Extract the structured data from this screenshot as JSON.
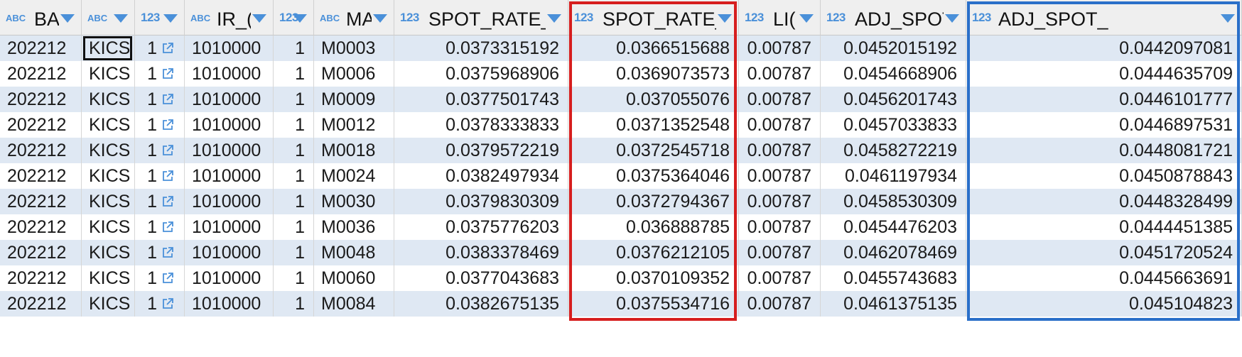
{
  "columns": [
    {
      "type": "ABC",
      "label": "BA"
    },
    {
      "type": "ABC",
      "label": ""
    },
    {
      "type": "123",
      "label": ""
    },
    {
      "type": "ABC",
      "label": "IR_("
    },
    {
      "type": "123",
      "label": ""
    },
    {
      "type": "ABC",
      "label": "MA"
    },
    {
      "type": "123",
      "label": "SPOT_RATE_D"
    },
    {
      "type": "123",
      "label": "SPOT_RATE_C"
    },
    {
      "type": "123",
      "label": "LI("
    },
    {
      "type": "123",
      "label": "ADJ_SPOT."
    },
    {
      "type": "123",
      "label": "ADJ_SPOT_"
    }
  ],
  "rows": [
    [
      "202212",
      "KICS",
      "1",
      "1010000",
      "1",
      "M0003",
      "0.0373315192",
      "0.0366515688",
      "0.00787",
      "0.0452015192",
      "0.0442097081"
    ],
    [
      "202212",
      "KICS",
      "1",
      "1010000",
      "1",
      "M0006",
      "0.0375968906",
      "0.0369073573",
      "0.00787",
      "0.0454668906",
      "0.0444635709"
    ],
    [
      "202212",
      "KICS",
      "1",
      "1010000",
      "1",
      "M0009",
      "0.0377501743",
      "0.037055076",
      "0.00787",
      "0.0456201743",
      "0.0446101777"
    ],
    [
      "202212",
      "KICS",
      "1",
      "1010000",
      "1",
      "M0012",
      "0.0378333833",
      "0.0371352548",
      "0.00787",
      "0.0457033833",
      "0.0446897531"
    ],
    [
      "202212",
      "KICS",
      "1",
      "1010000",
      "1",
      "M0018",
      "0.0379572219",
      "0.0372545718",
      "0.00787",
      "0.0458272219",
      "0.0448081721"
    ],
    [
      "202212",
      "KICS",
      "1",
      "1010000",
      "1",
      "M0024",
      "0.0382497934",
      "0.0375364046",
      "0.00787",
      "0.0461197934",
      "0.0450878843"
    ],
    [
      "202212",
      "KICS",
      "1",
      "1010000",
      "1",
      "M0030",
      "0.0379830309",
      "0.0372794367",
      "0.00787",
      "0.0458530309",
      "0.0448328499"
    ],
    [
      "202212",
      "KICS",
      "1",
      "1010000",
      "1",
      "M0036",
      "0.0375776203",
      "0.036888785",
      "0.00787",
      "0.0454476203",
      "0.0444451385"
    ],
    [
      "202212",
      "KICS",
      "1",
      "1010000",
      "1",
      "M0048",
      "0.0383378469",
      "0.0376212105",
      "0.00787",
      "0.0462078469",
      "0.0451720524"
    ],
    [
      "202212",
      "KICS",
      "1",
      "1010000",
      "1",
      "M0060",
      "0.0377043683",
      "0.0370109352",
      "0.00787",
      "0.0455743683",
      "0.0445663691"
    ],
    [
      "202212",
      "KICS",
      "1",
      "1010000",
      "1",
      "M0084",
      "0.0382675135",
      "0.0375534716",
      "0.00787",
      "0.0461375135",
      "0.045104823"
    ]
  ],
  "colors": {
    "stripe": "#dfe8f3",
    "type_icon": "#4a90d9",
    "highlight_red": "#d61e1e",
    "highlight_blue": "#2a6fc9"
  },
  "icons": {
    "column_sort": "chevron-down-icon",
    "fk_link": "external-link-icon"
  }
}
